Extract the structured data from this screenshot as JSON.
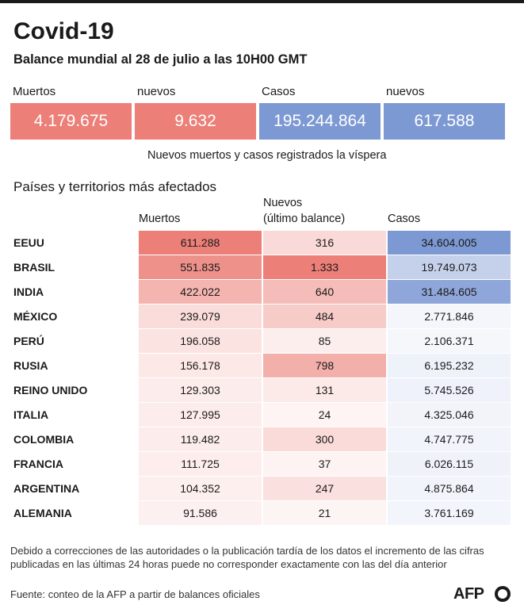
{
  "header": {
    "title": "Covid-19",
    "subtitle": "Balance mundial al 28 de julio a las 10H00 GMT"
  },
  "summary": [
    {
      "label": "Muertos",
      "value": "4.179.675",
      "color": "#ec7f78"
    },
    {
      "label": "nuevos",
      "value": "9.632",
      "color": "#ec7f78"
    },
    {
      "label": "Casos",
      "value": "195.244.864",
      "color": "#7d99d3"
    },
    {
      "label": "nuevos",
      "value": "617.588",
      "color": "#7d99d3"
    }
  ],
  "summary_note": "Nuevos muertos y casos registrados la víspera",
  "section_title": "Países y territorios más afectados",
  "columns": {
    "deaths": "Muertos",
    "new_line1": "Nuevos",
    "new_line2": "(último balance)",
    "cases": "Casos"
  },
  "colors": {
    "deaths_scale": "#ec7f78",
    "new_scale": "#ec7f78",
    "cases_scale": "#7d99d3"
  },
  "chart_data": {
    "type": "table",
    "title": "Países y territorios más afectados",
    "columns": [
      "Muertos",
      "Nuevos (último balance)",
      "Casos"
    ],
    "rows": [
      {
        "country": "EEUU",
        "deaths": "611.288",
        "deaths_value": 611288,
        "new": "316",
        "new_value": 316,
        "cases": "34.604.005",
        "cases_value": 34604005
      },
      {
        "country": "BRASIL",
        "deaths": "551.835",
        "deaths_value": 551835,
        "new": "1.333",
        "new_value": 1333,
        "cases": "19.749.073",
        "cases_value": 19749073
      },
      {
        "country": "INDIA",
        "deaths": "422.022",
        "deaths_value": 422022,
        "new": "640",
        "new_value": 640,
        "cases": "31.484.605",
        "cases_value": 31484605
      },
      {
        "country": "MÉXICO",
        "deaths": "239.079",
        "deaths_value": 239079,
        "new": "484",
        "new_value": 484,
        "cases": "2.771.846",
        "cases_value": 2771846
      },
      {
        "country": "PERÚ",
        "deaths": "196.058",
        "deaths_value": 196058,
        "new": "85",
        "new_value": 85,
        "cases": "2.106.371",
        "cases_value": 2106371
      },
      {
        "country": "RUSIA",
        "deaths": "156.178",
        "deaths_value": 156178,
        "new": "798",
        "new_value": 798,
        "cases": "6.195.232",
        "cases_value": 6195232
      },
      {
        "country": "REINO UNIDO",
        "deaths": "129.303",
        "deaths_value": 129303,
        "new": "131",
        "new_value": 131,
        "cases": "5.745.526",
        "cases_value": 5745526
      },
      {
        "country": "ITALIA",
        "deaths": "127.995",
        "deaths_value": 127995,
        "new": "24",
        "new_value": 24,
        "cases": "4.325.046",
        "cases_value": 4325046
      },
      {
        "country": "COLOMBIA",
        "deaths": "119.482",
        "deaths_value": 119482,
        "new": "300",
        "new_value": 300,
        "cases": "4.747.775",
        "cases_value": 4747775
      },
      {
        "country": "FRANCIA",
        "deaths": "111.725",
        "deaths_value": 111725,
        "new": "37",
        "new_value": 37,
        "cases": "6.026.115",
        "cases_value": 6026115
      },
      {
        "country": "ARGENTINA",
        "deaths": "104.352",
        "deaths_value": 104352,
        "new": "247",
        "new_value": 247,
        "cases": "4.875.864",
        "cases_value": 4875864
      },
      {
        "country": "ALEMANIA",
        "deaths": "91.586",
        "deaths_value": 91586,
        "new": "21",
        "new_value": 21,
        "cases": "3.761.169",
        "cases_value": 3761169
      }
    ]
  },
  "footer": {
    "note": "Debido a correcciones de las autoridades o la publicación tardía de los datos el incremento de las cifras publicadas en las últimas 24 horas puede no corresponder exactamente con las del día anterior",
    "source": "Fuente: conteo de la AFP a partir de balances oficiales",
    "logo": "AFP"
  }
}
